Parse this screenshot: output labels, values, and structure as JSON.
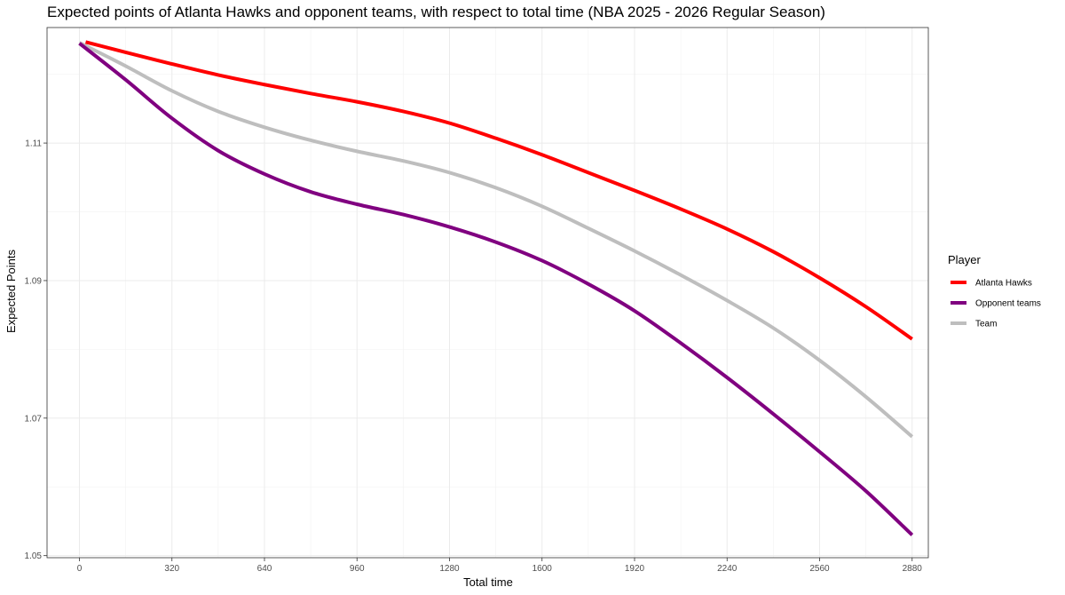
{
  "chart_data": {
    "type": "line",
    "title": "Expected points of Atlanta Hawks and opponent teams, with respect to total time (NBA 2025 - 2026 Regular Season)",
    "xlabel": "Total time",
    "ylabel": "Expected Points",
    "xlim": [
      -112,
      2936
    ],
    "ylim": [
      1.0497,
      1.1268
    ],
    "x_ticks": [
      0,
      320,
      640,
      960,
      1280,
      1600,
      1920,
      2240,
      2560,
      2880
    ],
    "y_ticks": [
      1.05,
      1.07,
      1.09,
      1.11
    ],
    "y_tick_labels": [
      "1.05",
      "1.07",
      "1.09",
      "1.11"
    ],
    "grid": true,
    "legend": {
      "title": "Player",
      "position": "right"
    },
    "x": [
      0,
      160,
      320,
      480,
      640,
      800,
      960,
      1120,
      1280,
      1440,
      1600,
      1760,
      1920,
      2080,
      2240,
      2400,
      2560,
      2720,
      2880
    ],
    "series": [
      {
        "name": "Atlanta Hawks",
        "color": "#ff0000",
        "values": [
          1.1247,
          1.1232,
          1.1215,
          1.1199,
          1.1185,
          1.1172,
          1.116,
          1.1146,
          1.1129,
          1.1107,
          1.1083,
          1.1057,
          1.1031,
          1.1004,
          1.0975,
          1.0942,
          1.0904,
          1.0862,
          1.0815
        ]
      },
      {
        "name": "Opponent teams",
        "color": "#800080",
        "values": [
          1.1245,
          1.1192,
          1.1136,
          1.1089,
          1.1055,
          1.1029,
          1.1011,
          1.0996,
          1.0978,
          1.0956,
          1.0929,
          1.0895,
          1.0856,
          1.0809,
          1.0759,
          1.0706,
          1.0651,
          1.0594,
          1.053
        ]
      },
      {
        "name": "Team",
        "color": "#bebebe",
        "values": [
          1.1246,
          1.1212,
          1.1176,
          1.1146,
          1.1123,
          1.1104,
          1.1088,
          1.1074,
          1.1057,
          1.1035,
          1.1008,
          1.0976,
          1.0943,
          1.0908,
          1.0871,
          1.0831,
          1.0784,
          1.0731,
          1.0673
        ]
      }
    ]
  }
}
